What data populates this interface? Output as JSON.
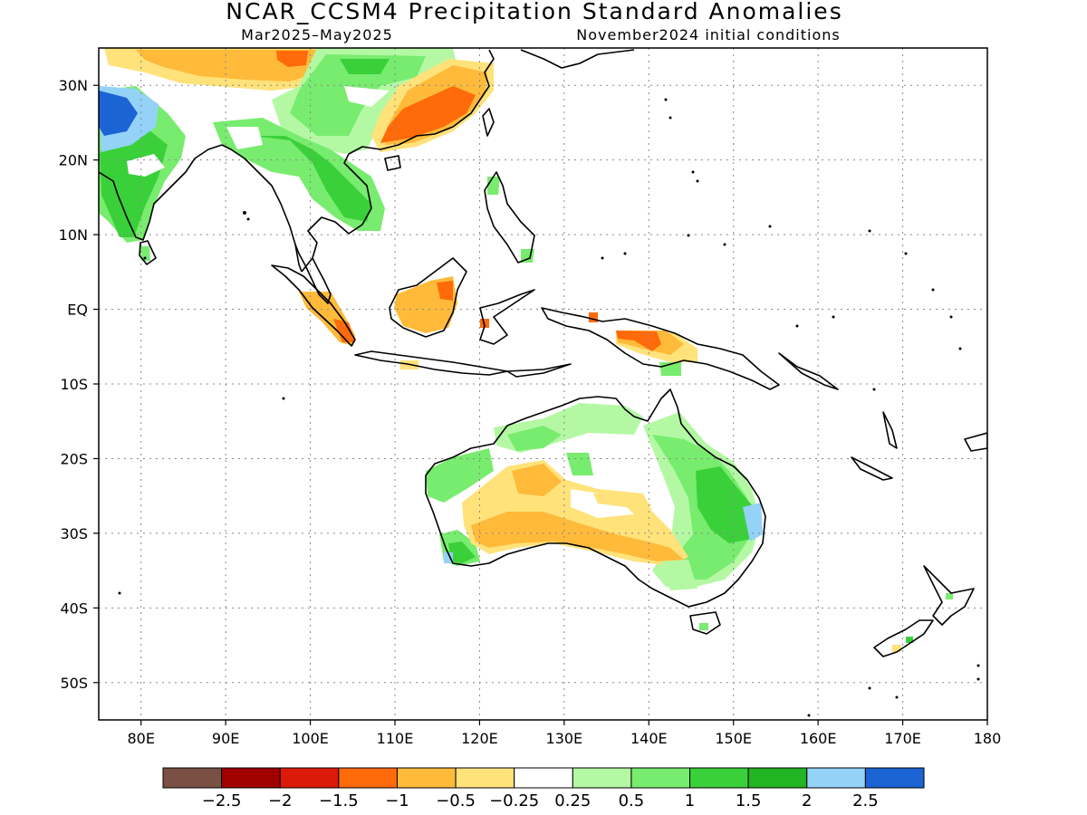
{
  "header": {
    "title": "NCAR_CCSM4 Precipitation Standard Anomalies",
    "period": "Mar2025–May2025",
    "init": "November2024 initial conditions"
  },
  "map": {
    "lon_range": [
      75,
      180
    ],
    "lat_range": [
      -55,
      35
    ],
    "lat_ticks": [
      {
        "v": 30,
        "label": "30N"
      },
      {
        "v": 20,
        "label": "20N"
      },
      {
        "v": 10,
        "label": "10N"
      },
      {
        "v": 0,
        "label": "EQ"
      },
      {
        "v": -10,
        "label": "10S"
      },
      {
        "v": -20,
        "label": "20S"
      },
      {
        "v": -30,
        "label": "30S"
      },
      {
        "v": -40,
        "label": "40S"
      },
      {
        "v": -50,
        "label": "50S"
      }
    ],
    "lon_ticks": [
      {
        "v": 80,
        "label": "80E"
      },
      {
        "v": 90,
        "label": "90E"
      },
      {
        "v": 100,
        "label": "100E"
      },
      {
        "v": 110,
        "label": "110E"
      },
      {
        "v": 120,
        "label": "120E"
      },
      {
        "v": 130,
        "label": "130E"
      },
      {
        "v": 140,
        "label": "140E"
      },
      {
        "v": 150,
        "label": "150E"
      },
      {
        "v": 160,
        "label": "160E"
      },
      {
        "v": 170,
        "label": "170E"
      },
      {
        "v": 180,
        "label": "180"
      }
    ],
    "grid": true
  },
  "colorbar": {
    "colors": [
      "#7a5044",
      "#a00000",
      "#dc1a0a",
      "#ff6a0a",
      "#ffba3a",
      "#ffe27a",
      "#ffffff",
      "#b4f8a4",
      "#78ec6e",
      "#3ad03a",
      "#22b422",
      "#94d2f8",
      "#1a64d4"
    ],
    "labels": [
      "−2.5",
      "−2",
      "−1.5",
      "−1",
      "−0.5",
      "−0.25",
      "0.25",
      "0.5",
      "1",
      "1.5",
      "2",
      "2.5"
    ]
  },
  "legend_colors": {
    "c_m1": "#ff6a0a",
    "c_m05": "#ffba3a",
    "c_m025": "#ffe27a",
    "c_p025": "#b4f8a4",
    "c_p05": "#78ec6e",
    "c_p1": "#3ad03a",
    "c_p15": "#22b422",
    "c_p2": "#94d2f8",
    "c_p25": "#1a64d4"
  }
}
